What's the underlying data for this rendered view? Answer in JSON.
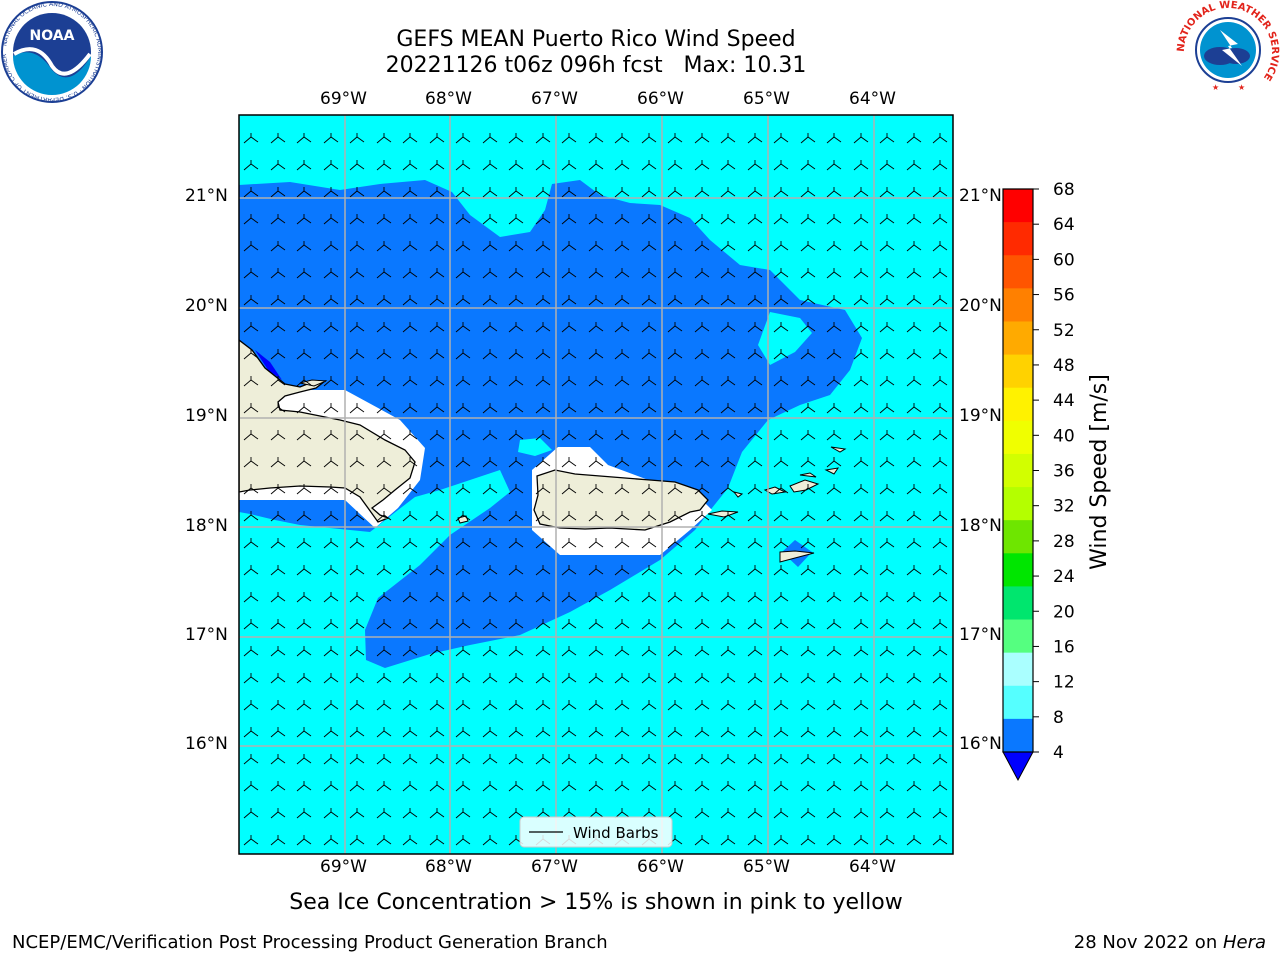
{
  "header": {
    "title_line1": "GEFS MEAN Puerto Rico Wind Speed",
    "title_line2": "20221126 t06z 096h fcst   Max: 10.31"
  },
  "map": {
    "lon_labels": [
      "69°W",
      "68°W",
      "67°W",
      "66°W",
      "65°W",
      "64°W"
    ],
    "lat_labels": [
      "21°N",
      "20°N",
      "19°N",
      "18°N",
      "17°N",
      "16°N"
    ],
    "legend_label": "Wind Barbs",
    "colors": {
      "ocean_low": "#00ffff",
      "ocean_mid": "#0a78ff",
      "land": "#eeeed9",
      "gridline": "#b0b0b0"
    }
  },
  "colorbar": {
    "label": "Wind Speed [m/s]",
    "ticks": [
      "68",
      "64",
      "60",
      "56",
      "52",
      "48",
      "44",
      "40",
      "36",
      "32",
      "28",
      "24",
      "20",
      "16",
      "12",
      "8",
      "4"
    ],
    "colors": [
      "#ff0000",
      "#ff2a00",
      "#ff5500",
      "#ff8000",
      "#ffaa00",
      "#ffd200",
      "#fff200",
      "#f0ff00",
      "#d2ff00",
      "#b4ff00",
      "#6ee600",
      "#00e600",
      "#00e66e",
      "#55ff80",
      "#aaffff",
      "#55ffff",
      "#00ffff",
      "#0a78ff"
    ],
    "extend_color": "#0000ff"
  },
  "caption": "Sea Ice Concentration > 15% is shown in pink to yellow",
  "footer": {
    "left": "NCEP/EMC/Verification Post Processing Product Generation Branch",
    "right_prefix": "28 Nov 2022 on ",
    "right_machine": "Hera"
  },
  "logos": {
    "noaa": "NOAA",
    "noaa_ring": "NATIONAL OCEANIC AND ATMOSPHERIC ADMINISTRATION · U.S. DEPARTMENT OF COMMERCE",
    "nws_ring": "NATIONAL WEATHER SERVICE"
  }
}
